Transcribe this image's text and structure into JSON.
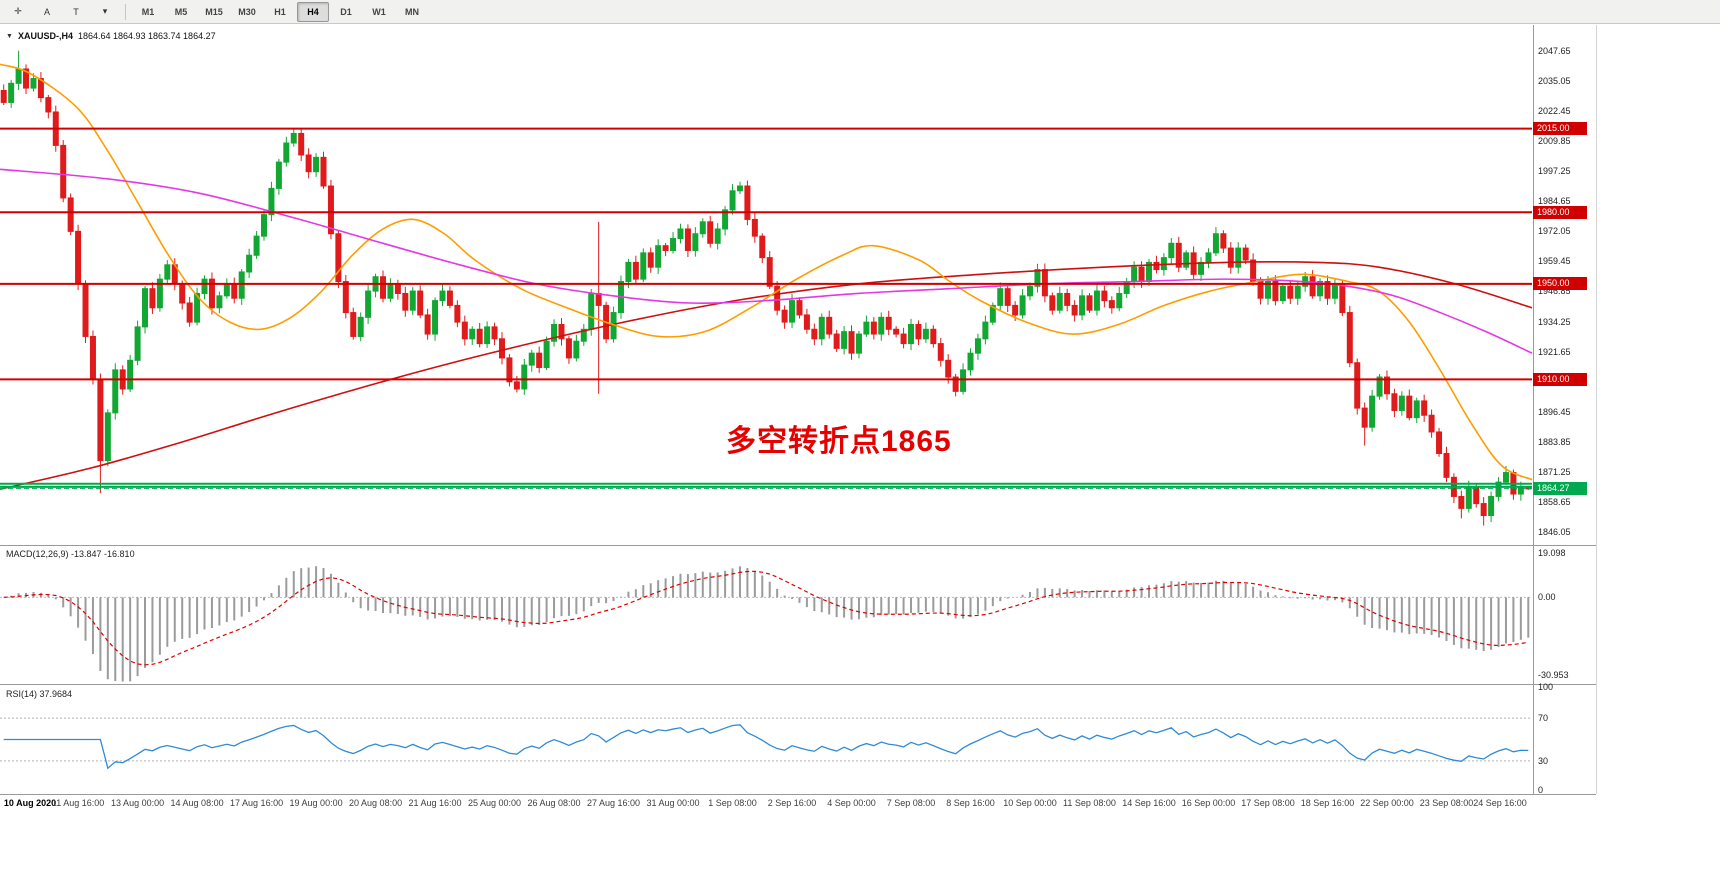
{
  "icons": {
    "dropdown": "▼",
    "caret": "▾"
  },
  "colors": {
    "bull": "#12a633",
    "bear": "#df1b1b",
    "level_red": "#d10000",
    "level_green": "#00a94f",
    "ma_red": "#cf0e0e",
    "ma_orange": "#ff9d00",
    "ma_magenta": "#e438e4",
    "macd_hist": "#9b9b9b",
    "macd_signal": "#e00000",
    "rsi_line": "#2f8bd6",
    "annotation": "#e60000"
  },
  "toolbar": {
    "tools": [
      {
        "name": "crosshair-tool",
        "glyph": "✛"
      },
      {
        "name": "text-label-tool",
        "glyph": "A"
      },
      {
        "name": "text-frame-tool",
        "glyph": "T"
      },
      {
        "name": "draw-objects-dropdown",
        "glyph": "▾"
      }
    ],
    "timeframes": [
      "M1",
      "M5",
      "M15",
      "M30",
      "H1",
      "H4",
      "D1",
      "W1",
      "MN"
    ],
    "active_timeframe": "H4"
  },
  "chart": {
    "symbol": "XAUUSD-,H4",
    "ohlc_text": "1864.64 1864.93 1863.74 1864.27",
    "annotation_text": "多空转折点1865"
  },
  "macd": {
    "label_text": "MACD(12,26,9) -13.847 -16.810",
    "axis": [
      "19.098",
      "0.00",
      "-30.953"
    ]
  },
  "rsi": {
    "label_text": "RSI(14) 37.9684",
    "axis": [
      "100",
      "70",
      "30",
      "0"
    ]
  },
  "chart_data": {
    "type": "candlestick",
    "symbol": "XAUUSD-",
    "timeframe": "H4",
    "price_range": [
      1841.5,
      2058
    ],
    "first_open": 2031,
    "closes": [
      2026,
      2034,
      2040,
      2032,
      2036,
      2028,
      2022,
      2008,
      1986,
      1972,
      1950,
      1928,
      1910,
      1876,
      1896,
      1914,
      1906,
      1918,
      1932,
      1948,
      1940,
      1952,
      1958,
      1950,
      1942,
      1934,
      1946,
      1952,
      1940,
      1945,
      1950,
      1944,
      1955,
      1962,
      1970,
      1979,
      1990,
      2001,
      2009,
      2013,
      2004,
      1997,
      2003,
      1991,
      1971,
      1951,
      1938,
      1928,
      1936,
      1947,
      1953,
      1944,
      1950,
      1946,
      1939,
      1947,
      1937,
      1929,
      1943,
      1947,
      1941,
      1934,
      1927,
      1931,
      1925,
      1932,
      1927,
      1919,
      1909,
      1906,
      1916,
      1921,
      1915,
      1926,
      1933,
      1927,
      1919,
      1926,
      1931,
      1946,
      1941,
      1927,
      1938,
      1951,
      1959,
      1952,
      1963,
      1957,
      1966,
      1964,
      1969,
      1973,
      1964,
      1971,
      1976,
      1967,
      1973,
      1981,
      1989,
      1991,
      1977,
      1970,
      1961,
      1949,
      1939,
      1934,
      1943,
      1937,
      1931,
      1927,
      1936,
      1929,
      1923,
      1930,
      1921,
      1929,
      1934,
      1929,
      1936,
      1931,
      1929,
      1925,
      1933,
      1927,
      1931,
      1925,
      1918,
      1911,
      1905,
      1914,
      1921,
      1927,
      1934,
      1941,
      1948,
      1941,
      1937,
      1945,
      1949,
      1956,
      1945,
      1939,
      1946,
      1941,
      1937,
      1945,
      1939,
      1947,
      1943,
      1940,
      1946,
      1951,
      1957,
      1951,
      1959,
      1956,
      1961,
      1967,
      1957,
      1963,
      1954,
      1959,
      1963,
      1971,
      1965,
      1957,
      1965,
      1960,
      1951,
      1944,
      1951,
      1943,
      1949,
      1944,
      1949,
      1953,
      1945,
      1951,
      1944,
      1950,
      1938,
      1917,
      1898,
      1890,
      1903,
      1911,
      1904,
      1897,
      1903,
      1894,
      1901,
      1895,
      1888,
      1879,
      1869,
      1861,
      1856,
      1865,
      1858,
      1853,
      1861,
      1867,
      1871,
      1862,
      1864.6,
      1864.27
    ],
    "wick_overrides": {
      "2": {
        "high": 2047.65
      },
      "13": {
        "low": 1862.4
      },
      "39": {
        "high": 2014.8
      },
      "80": {
        "high": 1976,
        "low": 1904
      },
      "99": {
        "high": 1992.8
      },
      "128": {
        "low": 1902.9
      },
      "183": {
        "low": 1882.3
      },
      "196": {
        "low": 1851.8
      },
      "199": {
        "low": 1848.8
      },
      "205": {
        "high": 1864.93,
        "low": 1863.74
      }
    },
    "y_axis_labels": [
      "2047.65",
      "2035.05",
      "2022.45",
      "2009.85",
      "1997.25",
      "1984.65",
      "1972.05",
      "1959.45",
      "1946.85",
      "1934.25",
      "1921.65",
      "1909.05",
      "1896.45",
      "1883.85",
      "1871.25",
      "1858.65",
      "1846.05"
    ],
    "x_labels": [
      {
        "i": 0,
        "t": "10 Aug 2020"
      },
      {
        "i": 10,
        "t": "11 Aug 16:00"
      },
      {
        "i": 18,
        "t": "13 Aug 00:00"
      },
      {
        "i": 26,
        "t": "14 Aug 08:00"
      },
      {
        "i": 34,
        "t": "17 Aug 16:00"
      },
      {
        "i": 42,
        "t": "19 Aug 00:00"
      },
      {
        "i": 50,
        "t": "20 Aug 08:00"
      },
      {
        "i": 58,
        "t": "21 Aug 16:00"
      },
      {
        "i": 66,
        "t": "25 Aug 00:00"
      },
      {
        "i": 74,
        "t": "26 Aug 08:00"
      },
      {
        "i": 82,
        "t": "27 Aug 16:00"
      },
      {
        "i": 90,
        "t": "31 Aug 00:00"
      },
      {
        "i": 98,
        "t": "1 Sep 08:00"
      },
      {
        "i": 106,
        "t": "2 Sep 16:00"
      },
      {
        "i": 114,
        "t": "4 Sep 00:00"
      },
      {
        "i": 122,
        "t": "7 Sep 08:00"
      },
      {
        "i": 130,
        "t": "8 Sep 16:00"
      },
      {
        "i": 138,
        "t": "10 Sep 00:00"
      },
      {
        "i": 146,
        "t": "11 Sep 08:00"
      },
      {
        "i": 154,
        "t": "14 Sep 16:00"
      },
      {
        "i": 162,
        "t": "16 Sep 00:00"
      },
      {
        "i": 170,
        "t": "17 Sep 08:00"
      },
      {
        "i": 178,
        "t": "18 Sep 16:00"
      },
      {
        "i": 186,
        "t": "22 Sep 00:00"
      },
      {
        "i": 194,
        "t": "23 Sep 08:00"
      },
      {
        "i": 202,
        "t": "24 Sep 16:00"
      }
    ],
    "levels": [
      {
        "price": 2015.0,
        "label": "2015.00",
        "color": "red",
        "width": 2
      },
      {
        "price": 1980.0,
        "label": "1980.00",
        "color": "red",
        "width": 2
      },
      {
        "price": 1950.0,
        "label": "1950.00",
        "color": "red",
        "width": 2
      },
      {
        "price": 1910.0,
        "label": "1910.00",
        "color": "red",
        "width": 2
      },
      {
        "price": 1866.3,
        "label": null,
        "color": "green",
        "width": 2
      },
      {
        "price": 1865.0,
        "label": null,
        "color": "green",
        "width": 2
      },
      {
        "price": 1864.27,
        "label": "1864.27",
        "color": "green",
        "width": 1,
        "dashed": true
      }
    ],
    "ma_lines": [
      {
        "name": "ma-long-red",
        "color_key": "ma_red",
        "points": [
          [
            0,
            1864
          ],
          [
            0.06,
            1873
          ],
          [
            0.12,
            1884
          ],
          [
            0.18,
            1896
          ],
          [
            0.255,
            1910
          ],
          [
            0.32,
            1921
          ],
          [
            0.4,
            1933
          ],
          [
            0.48,
            1943
          ],
          [
            0.56,
            1950
          ],
          [
            0.64,
            1954
          ],
          [
            0.72,
            1957
          ],
          [
            0.8,
            1959
          ],
          [
            0.86,
            1959
          ],
          [
            0.9,
            1957
          ],
          [
            0.95,
            1950
          ],
          [
            1,
            1940
          ]
        ]
      },
      {
        "name": "ma-medium-orange",
        "color_key": "ma_orange",
        "points": [
          [
            0,
            2042
          ],
          [
            0.02,
            2038
          ],
          [
            0.05,
            2024
          ],
          [
            0.07,
            2006
          ],
          [
            0.09,
            1984
          ],
          [
            0.11,
            1962
          ],
          [
            0.13,
            1944
          ],
          [
            0.15,
            1934
          ],
          [
            0.17,
            1931
          ],
          [
            0.19,
            1936
          ],
          [
            0.21,
            1947
          ],
          [
            0.23,
            1962
          ],
          [
            0.25,
            1973
          ],
          [
            0.27,
            1977
          ],
          [
            0.29,
            1971
          ],
          [
            0.31,
            1960
          ],
          [
            0.34,
            1948
          ],
          [
            0.37,
            1940
          ],
          [
            0.4,
            1933
          ],
          [
            0.43,
            1928
          ],
          [
            0.46,
            1930
          ],
          [
            0.49,
            1940
          ],
          [
            0.52,
            1952
          ],
          [
            0.55,
            1962
          ],
          [
            0.57,
            1966
          ],
          [
            0.6,
            1960
          ],
          [
            0.62,
            1951
          ],
          [
            0.64,
            1943
          ],
          [
            0.67,
            1934
          ],
          [
            0.7,
            1929
          ],
          [
            0.73,
            1933
          ],
          [
            0.76,
            1941
          ],
          [
            0.79,
            1947
          ],
          [
            0.82,
            1951
          ],
          [
            0.85,
            1954
          ],
          [
            0.88,
            1951
          ],
          [
            0.9,
            1947
          ],
          [
            0.92,
            1934
          ],
          [
            0.94,
            1914
          ],
          [
            0.96,
            1892
          ],
          [
            0.98,
            1874
          ],
          [
            1,
            1868
          ]
        ]
      },
      {
        "name": "ma-slow-magenta",
        "color_key": "ma_magenta",
        "points": [
          [
            0,
            1998
          ],
          [
            0.07,
            1994
          ],
          [
            0.13,
            1988
          ],
          [
            0.19,
            1978
          ],
          [
            0.25,
            1967
          ],
          [
            0.3,
            1958
          ],
          [
            0.35,
            1950
          ],
          [
            0.4,
            1945
          ],
          [
            0.45,
            1942
          ],
          [
            0.5,
            1943
          ],
          [
            0.56,
            1946
          ],
          [
            0.62,
            1948
          ],
          [
            0.68,
            1950
          ],
          [
            0.74,
            1951
          ],
          [
            0.8,
            1952
          ],
          [
            0.85,
            1951
          ],
          [
            0.88,
            1949
          ],
          [
            0.91,
            1945
          ],
          [
            0.94,
            1938
          ],
          [
            0.97,
            1930
          ],
          [
            1,
            1921
          ]
        ]
      }
    ],
    "macd_panel": {
      "range": [
        -33,
        20
      ],
      "periods": [
        12,
        26,
        9
      ]
    },
    "rsi_panel": {
      "period": 14,
      "levels": [
        70,
        30
      ]
    }
  }
}
